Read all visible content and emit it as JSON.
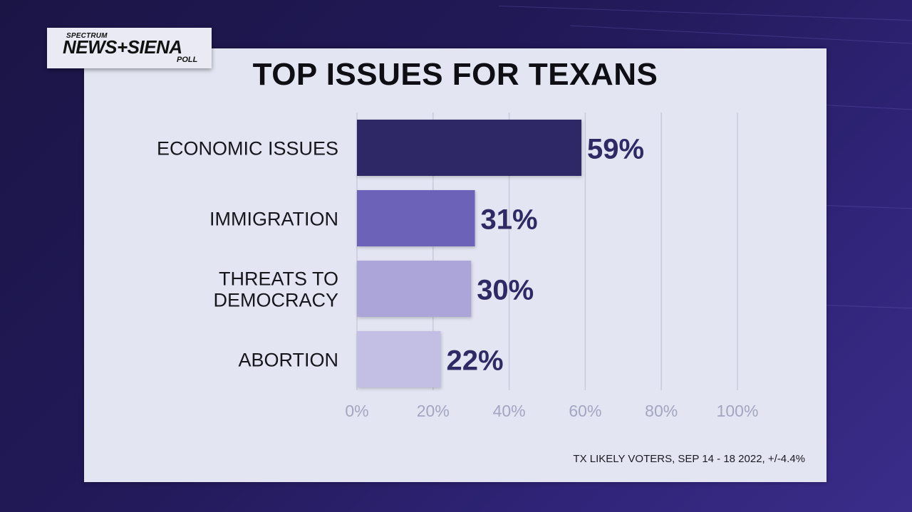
{
  "logo": {
    "line1": "SPECTRUM",
    "line2": "NEWS+SIENA",
    "line3": "POLL"
  },
  "footnote": "TX LIKELY VOTERS, SEP 14 - 18 2022, +/-4.4%",
  "chart_data": {
    "type": "bar",
    "orientation": "horizontal",
    "title": "TOP ISSUES FOR TEXANS",
    "categories": [
      [
        "ECONOMIC ISSUES"
      ],
      [
        "IMMIGRATION"
      ],
      [
        "THREATS TO",
        "DEMOCRACY"
      ],
      [
        "ABORTION"
      ]
    ],
    "values": [
      59,
      31,
      30,
      22
    ],
    "value_labels": [
      "59%",
      "31%",
      "30%",
      "22%"
    ],
    "bar_colors": [
      "#2e2966",
      "#6c63b8",
      "#aca5da",
      "#c3bfe4"
    ],
    "xlim": [
      0,
      100
    ],
    "xticks": [
      0,
      20,
      40,
      60,
      80,
      100
    ],
    "xtick_labels": [
      "0%",
      "20%",
      "40%",
      "60%",
      "80%",
      "100%"
    ],
    "grid": true,
    "xlabel": "",
    "ylabel": ""
  }
}
